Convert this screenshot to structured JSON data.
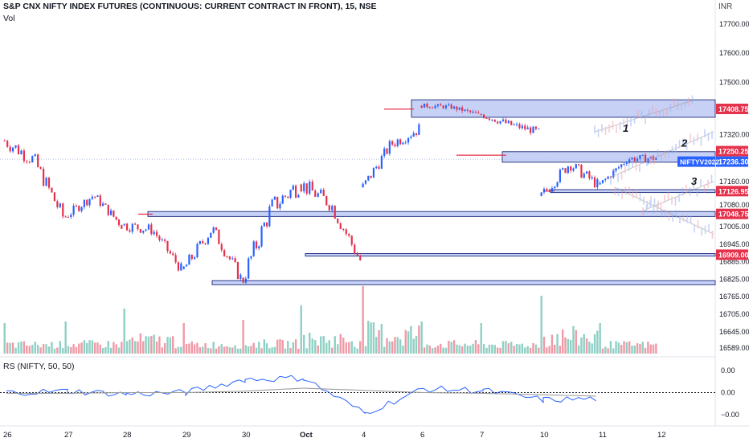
{
  "header": {
    "title": "S&P CNX NIFTY INDEX FUTURES (CONTINUOUS: CURRENT CONTRACT IN FRONT), 15, NSE",
    "vol_label": "Vol",
    "rs_label": "RS (NIFTY, 50, 50)",
    "currency": "INR"
  },
  "colors": {
    "up": "#2962ff",
    "down": "#e5314b",
    "zone_fill": "#b8c6f2",
    "zone_stroke": "#1c2a7a",
    "red_line": "#e5314b",
    "rs_line": "#2962ff",
    "rs_ma": "#9e9e9e",
    "hairline": "#90a4d8"
  },
  "chart_data": [
    {
      "type": "candlestick",
      "title": "S&P CNX NIFTY INDEX FUTURES (CONTINUOUS: CURRENT CONTRACT IN FRONT), 15, NSE",
      "y_axis_ticks": [
        17700,
        17600,
        17500,
        17320,
        17160,
        17080,
        17005,
        16945,
        16885,
        16825,
        16765,
        16705,
        16645,
        16589
      ],
      "ylim": [
        16570,
        17760
      ],
      "x_axis_ticks": [
        "26",
        "27",
        "28",
        "29",
        "30",
        "Oct",
        "4",
        "6",
        "7",
        "10",
        "11",
        "12"
      ],
      "series": [
        {
          "day": "26",
          "open": 17300,
          "high": 17330,
          "low": 17010,
          "close": 17040
        },
        {
          "day": "27",
          "open": 17040,
          "high": 17170,
          "low": 16980,
          "close": 17010
        },
        {
          "day": "28",
          "open": 17010,
          "high": 17060,
          "low": 16840,
          "close": 16860
        },
        {
          "day": "29",
          "open": 16860,
          "high": 17080,
          "low": 16810,
          "close": 16830
        },
        {
          "day": "30",
          "open": 16830,
          "high": 17190,
          "low": 16780,
          "close": 17150
        },
        {
          "day": "Oct",
          "open": 17150,
          "high": 17180,
          "low": 16860,
          "close": 16890
        },
        {
          "day": "4",
          "open": 17140,
          "high": 17360,
          "low": 17120,
          "close": 17340
        },
        {
          "day": "6",
          "open": 17420,
          "high": 17440,
          "low": 17360,
          "close": 17390
        },
        {
          "day": "7",
          "open": 17390,
          "high": 17400,
          "low": 17250,
          "close": 17330
        },
        {
          "day": "10",
          "open": 17110,
          "high": 17290,
          "low": 17060,
          "close": 17150
        },
        {
          "day": "11",
          "open": 17150,
          "high": 17280,
          "low": 17140,
          "close": 17240
        }
      ],
      "levels": [
        {
          "label": "17408.75",
          "value": 17408.75,
          "style": "zone",
          "color": "#e5314b"
        },
        {
          "label": "17250.25",
          "value": 17250.25,
          "style": "zone",
          "color": "#e5314b"
        },
        {
          "label": "17236.30",
          "value": 17236.3,
          "style": "current",
          "color": "#2962ff"
        },
        {
          "label": "17126.95",
          "value": 17126.95,
          "style": "zone",
          "color": "#e5314b"
        },
        {
          "label": "17048.75",
          "value": 17048.75,
          "style": "zone",
          "color": "#e5314b"
        },
        {
          "label": "16909.00",
          "value": 16909.0,
          "style": "zone",
          "color": "#e5314b"
        },
        {
          "label": "16813.00",
          "value": 16813.0,
          "style": "zone",
          "color": "#e5314b"
        }
      ],
      "current_price_label": "NIFTYV2022",
      "annotations": [
        "1",
        "2",
        "3"
      ]
    },
    {
      "type": "bar",
      "title": "Vol",
      "values_by_day": [
        {
          "day": "26",
          "relative": 0.45
        },
        {
          "day": "27",
          "relative": 0.5
        },
        {
          "day": "28",
          "relative": 0.9
        },
        {
          "day": "29",
          "relative": 0.45
        },
        {
          "day": "30",
          "relative": 0.55
        },
        {
          "day": "Oct",
          "relative": 1.0
        },
        {
          "day": "4",
          "relative": 1.6
        },
        {
          "day": "6",
          "relative": 0.5
        },
        {
          "day": "7",
          "relative": 0.45
        },
        {
          "day": "10",
          "relative": 1.3
        },
        {
          "day": "11",
          "relative": 0.45
        }
      ]
    },
    {
      "type": "line",
      "title": "RS (NIFTY, 50, 50)",
      "y_axis_ticks": [
        "0.00",
        "0.00",
        "−0.00"
      ],
      "ylim": [
        -0.4,
        0.4
      ],
      "series": [
        {
          "name": "RS",
          "values": [
            0.0,
            0.02,
            -0.02,
            0.0,
            0.18,
            0.2,
            -0.28,
            0.05,
            0.03,
            -0.1,
            -0.08
          ]
        },
        {
          "name": "MA",
          "values": [
            -0.01,
            -0.01,
            0.0,
            0.0,
            0.02,
            0.06,
            0.03,
            0.0,
            -0.01,
            -0.03,
            -0.05
          ]
        }
      ]
    }
  ]
}
